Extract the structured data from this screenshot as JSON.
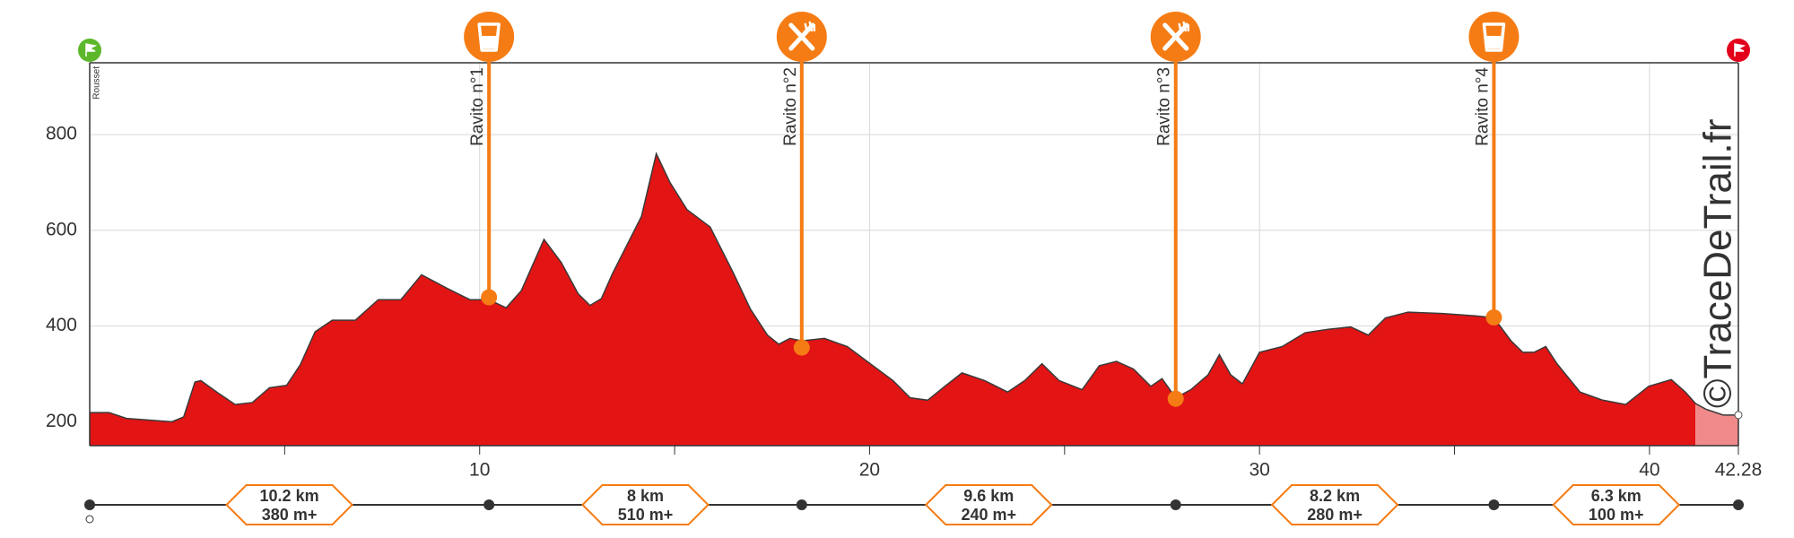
{
  "chart_data": {
    "type": "area",
    "color": "#e31414",
    "tail_color": "#f08a8a",
    "accent": "#f57c14",
    "x": [
      0,
      0.5,
      0.94,
      2.11,
      2.41,
      2.7,
      2.85,
      3.29,
      3.73,
      4.17,
      4.61,
      5.05,
      5.4,
      5.78,
      6.22,
      6.81,
      7.4,
      7.98,
      8.51,
      9.16,
      9.75,
      10.24,
      10.68,
      11.07,
      11.65,
      12.09,
      12.53,
      12.83,
      13.12,
      13.41,
      14.15,
      14.53,
      14.88,
      15.32,
      15.91,
      16.5,
      16.94,
      17.38,
      17.67,
      17.96,
      18.26,
      18.84,
      19.43,
      20.02,
      20.6,
      21.04,
      21.49,
      21.93,
      22.37,
      22.95,
      23.54,
      23.98,
      24.42,
      24.86,
      25.45,
      25.89,
      26.33,
      26.77,
      27.21,
      27.5,
      27.85,
      28.24,
      28.68,
      28.97,
      29.26,
      29.56,
      30.0,
      30.58,
      31.17,
      31.76,
      32.34,
      32.79,
      33.23,
      33.81,
      34.69,
      35.57,
      36.01,
      36.45,
      36.75,
      37.04,
      37.34,
      37.63,
      38.22,
      38.8,
      39.39,
      39.98,
      40.56,
      40.92,
      41.18,
      41.45,
      41.89,
      42.28
    ],
    "values": [
      219,
      219,
      207,
      200,
      210,
      283,
      286,
      260,
      236,
      240,
      271,
      276,
      319,
      388,
      412,
      412,
      455,
      455,
      507,
      479,
      455,
      455,
      438,
      474,
      581,
      533,
      467,
      443,
      457,
      510,
      629,
      760,
      700,
      643,
      607,
      512,
      436,
      381,
      362,
      374,
      369,
      374,
      357,
      321,
      286,
      250,
      245,
      274,
      302,
      286,
      262,
      286,
      321,
      286,
      267,
      317,
      326,
      310,
      274,
      290,
      250,
      267,
      298,
      340,
      298,
      279,
      345,
      357,
      386,
      393,
      398,
      381,
      417,
      429,
      426,
      421,
      417,
      369,
      345,
      345,
      357,
      321,
      262,
      245,
      236,
      274,
      288,
      262,
      238,
      226,
      214,
      214
    ],
    "tail_from": 41.18,
    "xlim": [
      0,
      42.28
    ],
    "ylim": [
      150,
      950
    ],
    "xticks": [
      10,
      20,
      30,
      40,
      42.28
    ],
    "xminor": [
      5,
      15,
      25,
      35
    ],
    "yticks": [
      200,
      400,
      600,
      800
    ],
    "grid": true,
    "start_label": "Rousset",
    "watermark": "©TraceDeTrail.fr",
    "waypoints": [
      {
        "label": "Ravito n°1",
        "x": 10.24,
        "elevation": 460,
        "icon": "drink"
      },
      {
        "label": "Ravito n°2",
        "x": 18.26,
        "elevation": 355,
        "icon": "food"
      },
      {
        "label": "Ravito n°3",
        "x": 27.85,
        "elevation": 248,
        "icon": "food"
      },
      {
        "label": "Ravito n°4",
        "x": 36.01,
        "elevation": 418,
        "icon": "drink"
      }
    ],
    "segments": [
      {
        "distance": "10.2 km",
        "gain": "380 m+"
      },
      {
        "distance": "8 km",
        "gain": "510 m+"
      },
      {
        "distance": "9.6 km",
        "gain": "240 m+"
      },
      {
        "distance": "8.2 km",
        "gain": "280 m+"
      },
      {
        "distance": "6.3 km",
        "gain": "100 m+"
      }
    ]
  }
}
